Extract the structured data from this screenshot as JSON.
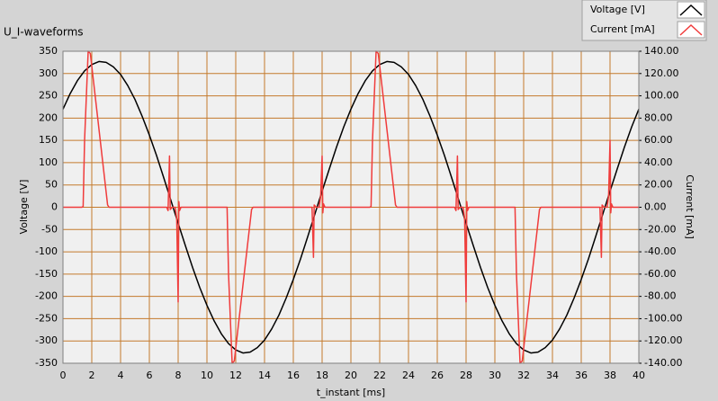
{
  "chart_data": {
    "type": "line",
    "title": "U_I-waveforms",
    "xlabel": "t_instant [ms]",
    "ylabel": "Voltage [V]",
    "y2label": "Current [mA]",
    "grid": true,
    "legend": "top-right",
    "xlim": [
      0,
      40
    ],
    "xticks": [
      0,
      2,
      4,
      6,
      8,
      10,
      12,
      14,
      16,
      18,
      20,
      22,
      24,
      26,
      28,
      30,
      32,
      34,
      36,
      38,
      40
    ],
    "ylim": [
      -350,
      350
    ],
    "yticks": [
      -350,
      -300,
      -250,
      -200,
      -150,
      -100,
      -50,
      0,
      50,
      100,
      150,
      200,
      250,
      300,
      350
    ],
    "y2lim": [
      -140,
      140
    ],
    "y2ticks": [
      {
        "value": -140,
        "label": "-140.00"
      },
      {
        "value": -120,
        "label": "-120.00"
      },
      {
        "value": -100,
        "label": "-100.00"
      },
      {
        "value": -80,
        "label": "-80.00"
      },
      {
        "value": -60,
        "label": "-60.00"
      },
      {
        "value": -40,
        "label": "-40.00"
      },
      {
        "value": -20,
        "label": "-20.00"
      },
      {
        "value": 0,
        "label": "0.00"
      },
      {
        "value": 20,
        "label": "20.00"
      },
      {
        "value": 40,
        "label": "40.00"
      },
      {
        "value": 60,
        "label": "60.00"
      },
      {
        "value": 80,
        "label": "80.00"
      },
      {
        "value": 100,
        "label": "100.00"
      },
      {
        "value": 120,
        "label": "120.00"
      },
      {
        "value": 140,
        "label": "140.00"
      }
    ],
    "series": [
      {
        "name": "Voltage [V]",
        "color": "#000000",
        "axis": "y",
        "x": [
          0,
          0.5,
          1,
          1.5,
          2,
          2.5,
          3,
          3.5,
          4,
          4.5,
          5,
          5.5,
          6,
          6.5,
          7,
          7.5,
          8,
          8.5,
          9,
          9.5,
          10,
          10.5,
          11,
          11.5,
          12,
          12.5,
          13,
          13.5,
          14,
          14.5,
          15,
          15.5,
          16,
          16.5,
          17,
          17.5,
          18,
          18.5,
          19,
          19.5,
          20,
          20.5,
          21,
          21.5,
          22,
          22.5,
          23,
          23.5,
          24,
          24.5,
          25,
          25.5,
          26,
          26.5,
          27,
          27.5,
          28,
          28.5,
          29,
          29.5,
          30,
          30.5,
          31,
          31.5,
          32,
          32.5,
          33,
          33.5,
          34,
          34.5,
          35,
          35.5,
          36,
          36.5,
          37,
          37.5,
          38,
          38.5,
          39,
          39.5,
          40
        ],
        "values": [
          220,
          255,
          284,
          306,
          320,
          327,
          325,
          315,
          298,
          273,
          242,
          204,
          162,
          116,
          66,
          15,
          -36,
          -86,
          -135,
          -180,
          -220,
          -255,
          -284,
          -306,
          -320,
          -327,
          -325,
          -315,
          -298,
          -273,
          -242,
          -204,
          -162,
          -116,
          -66,
          -15,
          36,
          86,
          135,
          180,
          220,
          255,
          284,
          306,
          320,
          327,
          325,
          315,
          298,
          273,
          242,
          204,
          162,
          116,
          66,
          15,
          -36,
          -86,
          -135,
          -180,
          -220,
          -255,
          -284,
          -306,
          -320,
          -327,
          -325,
          -315,
          -298,
          -273,
          -242,
          -204,
          -162,
          -116,
          -66,
          -15,
          36,
          86,
          135,
          180,
          220
        ]
      },
      {
        "name": "Current [mA]",
        "color": "#f03c3c",
        "axis": "y2",
        "x": [
          0,
          1.3,
          1.4,
          1.5,
          1.75,
          1.9,
          3.1,
          3.2,
          7.2,
          7.3,
          7.4,
          7.45,
          7.6,
          7.8,
          7.9,
          8,
          8.05,
          8.1,
          8.2,
          11.4,
          11.5,
          11.75,
          11.9,
          13.1,
          13.2,
          17.3,
          17.4,
          17.45,
          17.6,
          17.8,
          17.9,
          18,
          18.05,
          18.1,
          18.2,
          21.3,
          21.4,
          21.5,
          21.75,
          21.9,
          23.1,
          23.2,
          27.2,
          27.3,
          27.4,
          27.45,
          27.6,
          27.8,
          27.9,
          28,
          28.05,
          28.1,
          28.2,
          31.4,
          31.5,
          31.75,
          31.9,
          33.1,
          33.2,
          37.3,
          37.4,
          37.45,
          37.6,
          37.8,
          37.9,
          38,
          38.05,
          38.1,
          38.2,
          40
        ],
        "values": [
          0,
          0,
          0.5,
          60,
          140,
          138,
          2,
          0,
          0,
          -3,
          46,
          -2,
          0,
          0,
          -10,
          -85,
          5,
          -3,
          0,
          0,
          -60,
          -140,
          -138,
          -2,
          0,
          0,
          -45,
          2,
          0,
          0,
          10,
          46,
          -5,
          3,
          0,
          0,
          0.5,
          60,
          140,
          138,
          2,
          0,
          0,
          -3,
          46,
          -2,
          0,
          0,
          -10,
          -85,
          5,
          -3,
          0,
          0,
          -60,
          -140,
          -138,
          -2,
          0,
          0,
          -45,
          2,
          0,
          0,
          10,
          60,
          -5,
          3,
          0,
          0
        ]
      }
    ]
  }
}
